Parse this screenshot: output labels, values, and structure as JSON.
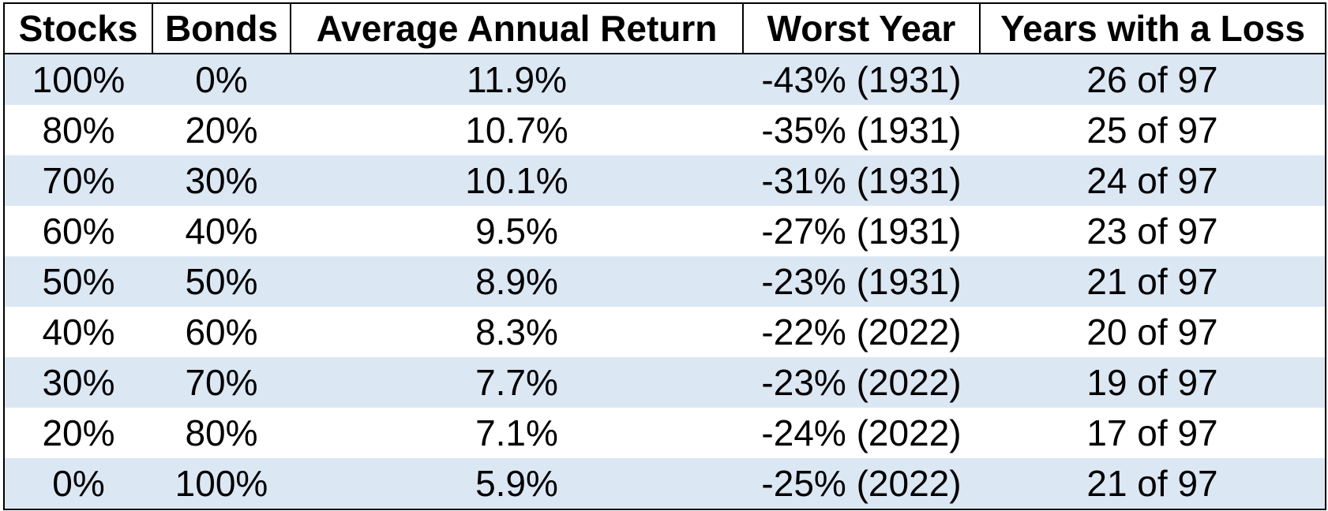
{
  "table": {
    "header": [
      "Stocks",
      "Bonds",
      "Average Annual Return",
      "Worst Year",
      "Years with a Loss"
    ],
    "rows": [
      [
        "100%",
        "0%",
        "11.9%",
        "-43% (1931)",
        "26 of 97"
      ],
      [
        "80%",
        "20%",
        "10.7%",
        "-35% (1931)",
        "25 of 97"
      ],
      [
        "70%",
        "30%",
        "10.1%",
        "-31% (1931)",
        "24 of 97"
      ],
      [
        "60%",
        "40%",
        "9.5%",
        "-27% (1931)",
        "23 of 97"
      ],
      [
        "50%",
        "50%",
        "8.9%",
        "-23% (1931)",
        "21 of 97"
      ],
      [
        "40%",
        "60%",
        "8.3%",
        "-22% (2022)",
        "20 of 97"
      ],
      [
        "30%",
        "70%",
        "7.7%",
        "-23% (2022)",
        "19 of 97"
      ],
      [
        "20%",
        "80%",
        "7.1%",
        "-24% (2022)",
        "17 of 97"
      ],
      [
        "0%",
        "100%",
        "5.9%",
        "-25% (2022)",
        "21 of 97"
      ]
    ]
  }
}
